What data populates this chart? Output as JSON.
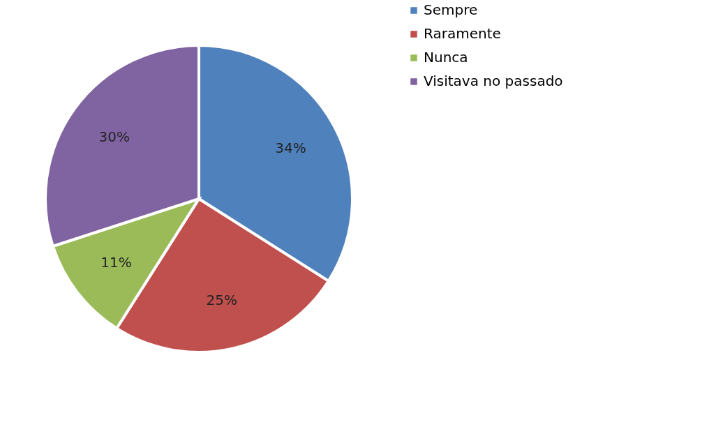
{
  "chart_data": {
    "type": "pie",
    "categories": [
      "Sempre",
      "Raramente",
      "Nunca",
      "Visitava no passado"
    ],
    "values": [
      34,
      25,
      11,
      30
    ],
    "colors": [
      "#4f81bd",
      "#c0504d",
      "#9bbb59",
      "#8064a2"
    ],
    "value_labels": [
      "34%",
      "25%",
      "11%",
      "30%"
    ],
    "legend": "right"
  }
}
